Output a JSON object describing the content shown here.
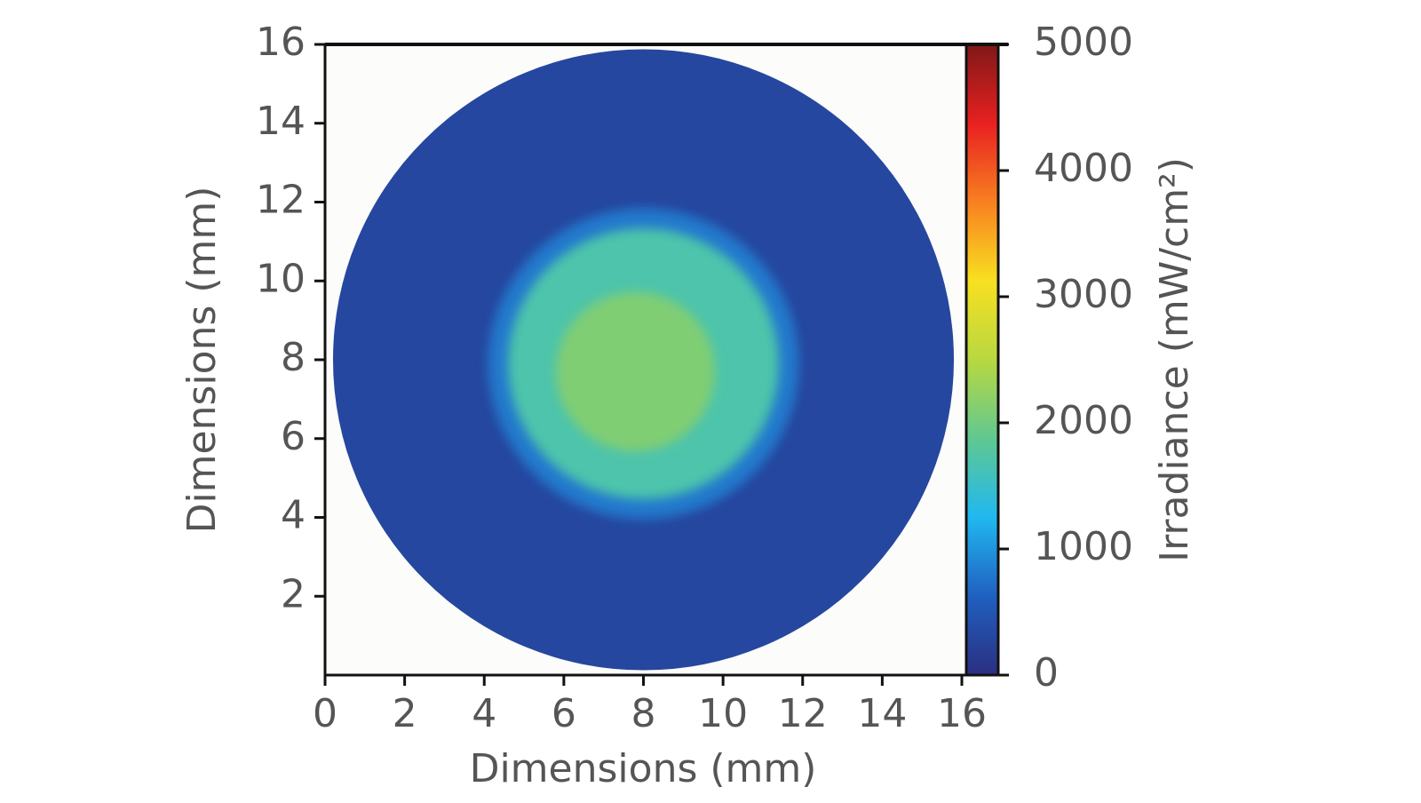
{
  "chart_data": {
    "type": "irradiance-map",
    "xlabel": "Dimensions (mm)",
    "ylabel": "Dimensions (mm)",
    "colorbar_label": "Irradiance (mW/cm²)",
    "xlim": [
      0,
      16
    ],
    "xticks": [
      0,
      2,
      4,
      6,
      8,
      10,
      12,
      14,
      16
    ],
    "ylim": [
      0,
      16
    ],
    "yticks": [
      2,
      4,
      6,
      8,
      10,
      12,
      14,
      16
    ],
    "clim": [
      0,
      5000
    ],
    "cticks": [
      0,
      1000,
      2000,
      3000,
      4000,
      5000
    ],
    "colormap": [
      "#2a2f80",
      "#2060c0",
      "#20b8f0",
      "#60c890",
      "#b8d840",
      "#f8e020",
      "#f88020",
      "#e82020",
      "#801818"
    ],
    "discs": [
      {
        "x": 8.0,
        "y": 8.0,
        "r": 7.8,
        "value": 300
      },
      {
        "x": 8.0,
        "y": 7.9,
        "r": 3.9,
        "value": 800
      },
      {
        "x": 8.0,
        "y": 7.9,
        "r": 3.4,
        "value": 1700
      },
      {
        "x": 7.8,
        "y": 7.7,
        "r": 2.0,
        "value": 2100
      }
    ]
  }
}
